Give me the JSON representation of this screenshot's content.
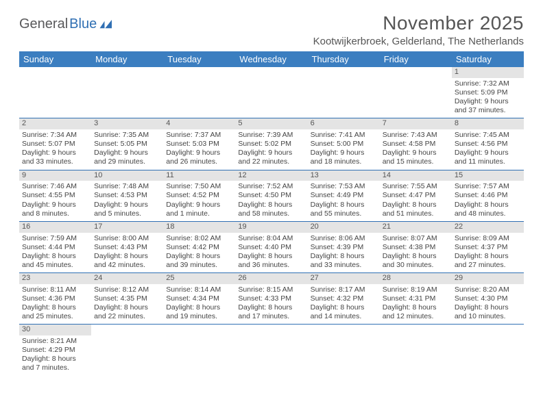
{
  "brand": {
    "part1": "General",
    "part2": "Blue"
  },
  "title": "November 2025",
  "location": "Kootwijkerbroek, Gelderland, The Netherlands",
  "colors": {
    "header_bg": "#3b7ec0",
    "header_fg": "#ffffff",
    "rule": "#2f6fb3",
    "daybar_bg": "#e4e4e4",
    "text": "#444444",
    "brand_grey": "#58585a",
    "brand_blue": "#2f6fb3",
    "page_bg": "#ffffff"
  },
  "typography": {
    "title_size_pt": 21,
    "location_size_pt": 11,
    "header_size_pt": 10,
    "cell_size_pt": 8
  },
  "weekdays": [
    "Sunday",
    "Monday",
    "Tuesday",
    "Wednesday",
    "Thursday",
    "Friday",
    "Saturday"
  ],
  "grid": [
    [
      null,
      null,
      null,
      null,
      null,
      null,
      {
        "n": "1",
        "sr": "7:32 AM",
        "ss": "5:09 PM",
        "dl": "9 hours and 37 minutes."
      }
    ],
    [
      {
        "n": "2",
        "sr": "7:34 AM",
        "ss": "5:07 PM",
        "dl": "9 hours and 33 minutes."
      },
      {
        "n": "3",
        "sr": "7:35 AM",
        "ss": "5:05 PM",
        "dl": "9 hours and 29 minutes."
      },
      {
        "n": "4",
        "sr": "7:37 AM",
        "ss": "5:03 PM",
        "dl": "9 hours and 26 minutes."
      },
      {
        "n": "5",
        "sr": "7:39 AM",
        "ss": "5:02 PM",
        "dl": "9 hours and 22 minutes."
      },
      {
        "n": "6",
        "sr": "7:41 AM",
        "ss": "5:00 PM",
        "dl": "9 hours and 18 minutes."
      },
      {
        "n": "7",
        "sr": "7:43 AM",
        "ss": "4:58 PM",
        "dl": "9 hours and 15 minutes."
      },
      {
        "n": "8",
        "sr": "7:45 AM",
        "ss": "4:56 PM",
        "dl": "9 hours and 11 minutes."
      }
    ],
    [
      {
        "n": "9",
        "sr": "7:46 AM",
        "ss": "4:55 PM",
        "dl": "9 hours and 8 minutes."
      },
      {
        "n": "10",
        "sr": "7:48 AM",
        "ss": "4:53 PM",
        "dl": "9 hours and 5 minutes."
      },
      {
        "n": "11",
        "sr": "7:50 AM",
        "ss": "4:52 PM",
        "dl": "9 hours and 1 minute."
      },
      {
        "n": "12",
        "sr": "7:52 AM",
        "ss": "4:50 PM",
        "dl": "8 hours and 58 minutes."
      },
      {
        "n": "13",
        "sr": "7:53 AM",
        "ss": "4:49 PM",
        "dl": "8 hours and 55 minutes."
      },
      {
        "n": "14",
        "sr": "7:55 AM",
        "ss": "4:47 PM",
        "dl": "8 hours and 51 minutes."
      },
      {
        "n": "15",
        "sr": "7:57 AM",
        "ss": "4:46 PM",
        "dl": "8 hours and 48 minutes."
      }
    ],
    [
      {
        "n": "16",
        "sr": "7:59 AM",
        "ss": "4:44 PM",
        "dl": "8 hours and 45 minutes."
      },
      {
        "n": "17",
        "sr": "8:00 AM",
        "ss": "4:43 PM",
        "dl": "8 hours and 42 minutes."
      },
      {
        "n": "18",
        "sr": "8:02 AM",
        "ss": "4:42 PM",
        "dl": "8 hours and 39 minutes."
      },
      {
        "n": "19",
        "sr": "8:04 AM",
        "ss": "4:40 PM",
        "dl": "8 hours and 36 minutes."
      },
      {
        "n": "20",
        "sr": "8:06 AM",
        "ss": "4:39 PM",
        "dl": "8 hours and 33 minutes."
      },
      {
        "n": "21",
        "sr": "8:07 AM",
        "ss": "4:38 PM",
        "dl": "8 hours and 30 minutes."
      },
      {
        "n": "22",
        "sr": "8:09 AM",
        "ss": "4:37 PM",
        "dl": "8 hours and 27 minutes."
      }
    ],
    [
      {
        "n": "23",
        "sr": "8:11 AM",
        "ss": "4:36 PM",
        "dl": "8 hours and 25 minutes."
      },
      {
        "n": "24",
        "sr": "8:12 AM",
        "ss": "4:35 PM",
        "dl": "8 hours and 22 minutes."
      },
      {
        "n": "25",
        "sr": "8:14 AM",
        "ss": "4:34 PM",
        "dl": "8 hours and 19 minutes."
      },
      {
        "n": "26",
        "sr": "8:15 AM",
        "ss": "4:33 PM",
        "dl": "8 hours and 17 minutes."
      },
      {
        "n": "27",
        "sr": "8:17 AM",
        "ss": "4:32 PM",
        "dl": "8 hours and 14 minutes."
      },
      {
        "n": "28",
        "sr": "8:19 AM",
        "ss": "4:31 PM",
        "dl": "8 hours and 12 minutes."
      },
      {
        "n": "29",
        "sr": "8:20 AM",
        "ss": "4:30 PM",
        "dl": "8 hours and 10 minutes."
      }
    ],
    [
      {
        "n": "30",
        "sr": "8:21 AM",
        "ss": "4:29 PM",
        "dl": "8 hours and 7 minutes."
      },
      null,
      null,
      null,
      null,
      null,
      null
    ]
  ],
  "labels": {
    "sunrise": "Sunrise:",
    "sunset": "Sunset:",
    "daylight": "Daylight:"
  }
}
